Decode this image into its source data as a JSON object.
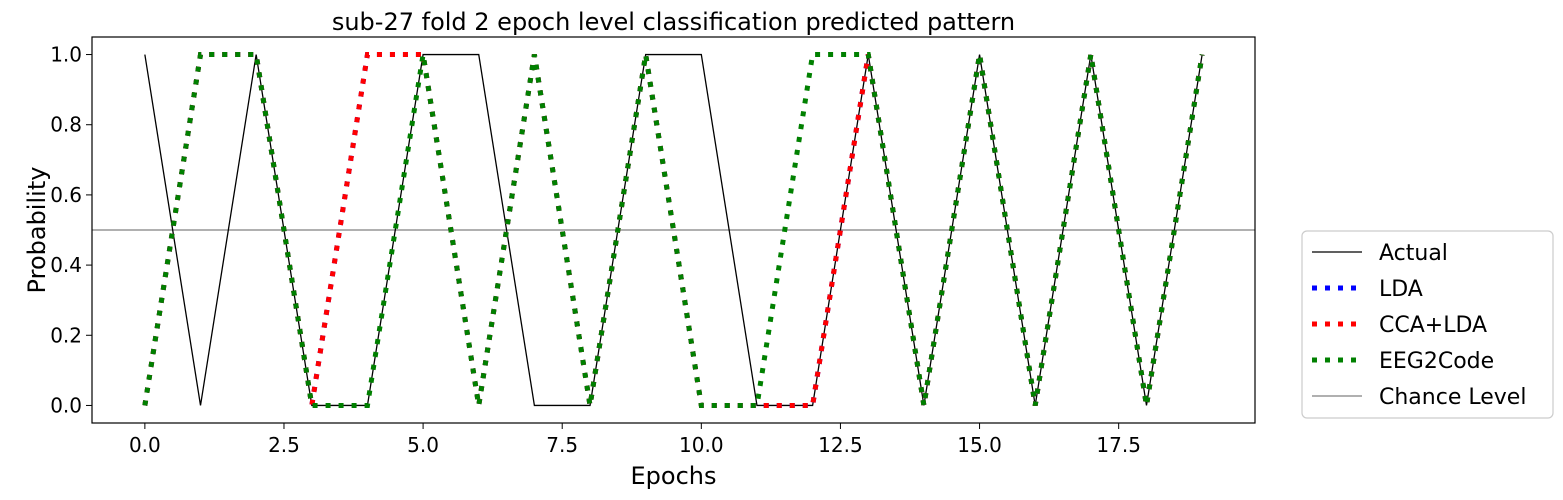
{
  "chart_data": {
    "type": "line",
    "title": "sub-27 fold 2 epoch level classification predicted pattern",
    "xlabel": "Epochs",
    "ylabel": "Probability",
    "xlim": [
      -0.95,
      19.95
    ],
    "ylim": [
      -0.05,
      1.05
    ],
    "xticks": [
      0.0,
      2.5,
      5.0,
      7.5,
      10.0,
      12.5,
      15.0,
      17.5
    ],
    "xtick_labels": [
      "0.0",
      "2.5",
      "5.0",
      "7.5",
      "10.0",
      "12.5",
      "15.0",
      "17.5"
    ],
    "yticks": [
      0.0,
      0.2,
      0.4,
      0.6,
      0.8,
      1.0
    ],
    "ytick_labels": [
      "0.0",
      "0.2",
      "0.4",
      "0.6",
      "0.8",
      "1.0"
    ],
    "grid": false,
    "legend_position": "outside-right-bottom",
    "x": [
      0,
      1,
      2,
      3,
      4,
      5,
      6,
      7,
      8,
      9,
      10,
      11,
      12,
      13,
      14,
      15,
      16,
      17,
      18,
      19
    ],
    "series": [
      {
        "name": "Actual",
        "color": "#000000",
        "style": "solid",
        "values": [
          1,
          0,
          1,
          0,
          0,
          1,
          1,
          0,
          0,
          1,
          1,
          0,
          0,
          1,
          0,
          1,
          0,
          1,
          0,
          1
        ]
      },
      {
        "name": "LDA",
        "color": "#0000ff",
        "style": "dotted",
        "values": [
          0,
          1,
          1,
          0,
          1,
          1,
          0,
          1,
          0,
          1,
          0,
          0,
          0,
          1,
          0,
          1,
          0,
          1,
          0,
          1
        ]
      },
      {
        "name": "CCA+LDA",
        "color": "#ff0000",
        "style": "dotted",
        "values": [
          0,
          1,
          1,
          0,
          1,
          1,
          0,
          1,
          0,
          1,
          0,
          0,
          0,
          1,
          0,
          1,
          0,
          1,
          0,
          1
        ]
      },
      {
        "name": "EEG2Code",
        "color": "#008000",
        "style": "dotted",
        "values": [
          0,
          1,
          1,
          0,
          0,
          1,
          0,
          1,
          0,
          1,
          0,
          0,
          1,
          1,
          0,
          1,
          0,
          1,
          0,
          1
        ]
      }
    ],
    "reference_lines": [
      {
        "name": "Chance Level",
        "y": 0.5,
        "color": "#808080"
      }
    ]
  }
}
